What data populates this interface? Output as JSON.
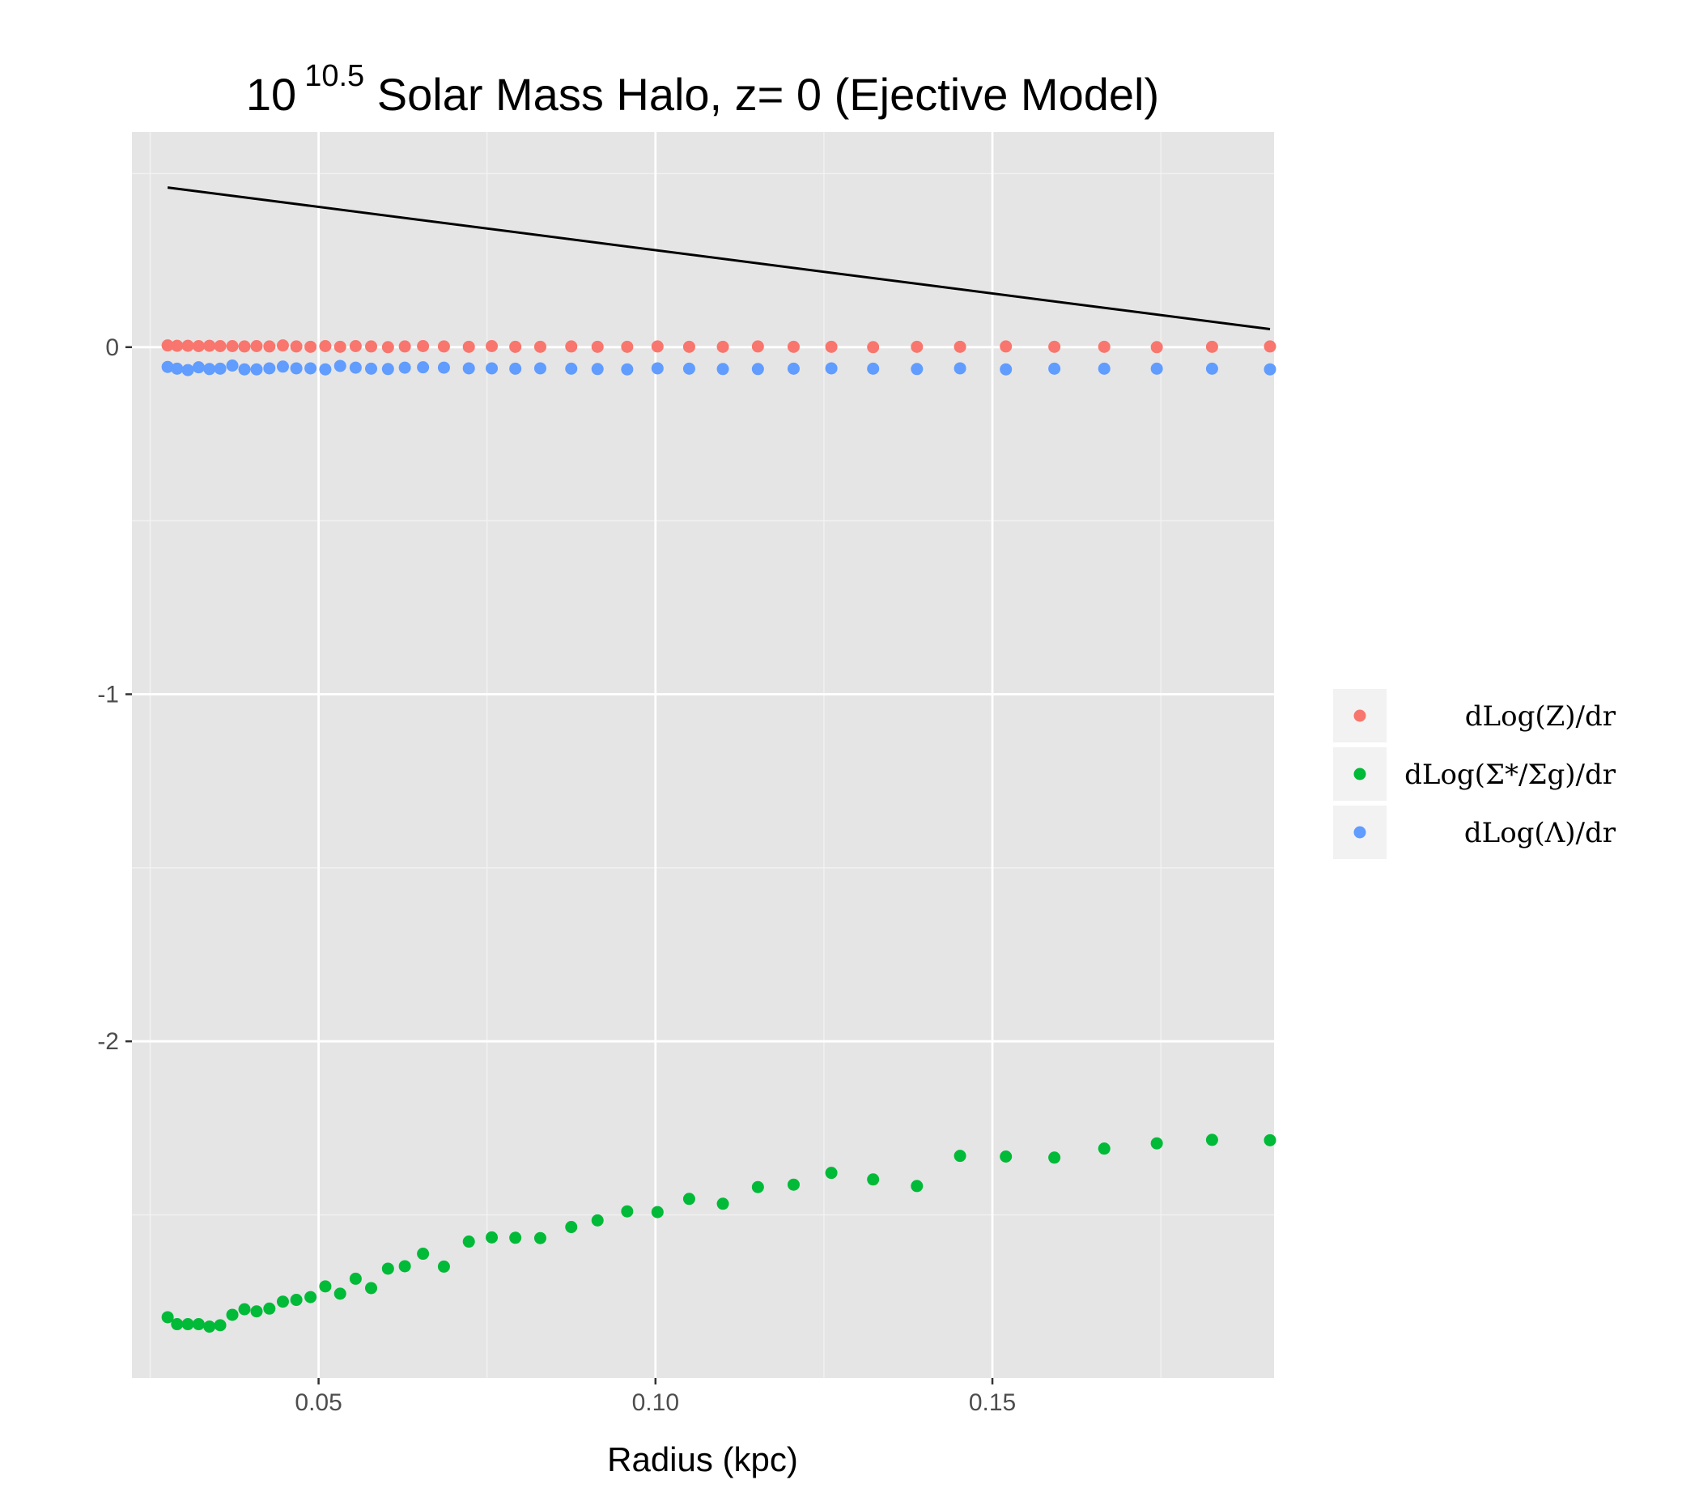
{
  "title": {
    "base": "10",
    "exponent": "10.5",
    "rest": " Solar Mass Halo, z= 0 (Ejective Model)"
  },
  "chart_data": {
    "type": "scatter",
    "xlabel": "Radius (kpc)",
    "ylabel": "",
    "xlim": [
      0.0223,
      0.1918
    ],
    "ylim": [
      -2.97,
      0.62
    ],
    "x_ticks": [
      {
        "value": 0.05,
        "label": "0.05"
      },
      {
        "value": 0.1,
        "label": "0.10"
      },
      {
        "value": 0.15,
        "label": "0.15"
      }
    ],
    "y_ticks": [
      {
        "value": 0,
        "label": "0"
      },
      {
        "value": -1,
        "label": "-1"
      },
      {
        "value": -2,
        "label": "-2"
      }
    ],
    "grid": true,
    "legend_position": "right",
    "x": [
      0.0276,
      0.029,
      0.0306,
      0.0322,
      0.0338,
      0.0354,
      0.0372,
      0.039,
      0.0408,
      0.0427,
      0.0447,
      0.0467,
      0.0488,
      0.051,
      0.0532,
      0.0555,
      0.0578,
      0.0603,
      0.0628,
      0.0655,
      0.0686,
      0.0723,
      0.0757,
      0.0792,
      0.0829,
      0.0875,
      0.0914,
      0.0958,
      0.1003,
      0.105,
      0.11,
      0.1152,
      0.1205,
      0.1261,
      0.1323,
      0.1388,
      0.1452,
      0.152,
      0.1592,
      0.1666,
      0.1744,
      0.1826,
      0.1912
    ],
    "series": [
      {
        "name": "dLog(Z)/dr",
        "color": "#f8766d",
        "values": [
          0.005,
          0.004,
          0.004,
          0.003,
          0.004,
          0.003,
          0.003,
          0.002,
          0.003,
          0.002,
          0.005,
          0.002,
          0.001,
          0.003,
          0.001,
          0.003,
          0.002,
          0.0,
          0.002,
          0.003,
          0.002,
          0.001,
          0.003,
          0.001,
          0.001,
          0.002,
          0.001,
          0.001,
          0.002,
          0.001,
          0.001,
          0.002,
          0.001,
          0.001,
          0.0,
          0.001,
          0.001,
          0.002,
          0.001,
          0.001,
          0.0,
          0.001,
          0.002
        ]
      },
      {
        "name": "dLog(Σ*/Σg)/dr",
        "color": "#00ba38",
        "values": [
          -2.795,
          -2.815,
          -2.815,
          -2.815,
          -2.822,
          -2.818,
          -2.788,
          -2.772,
          -2.778,
          -2.77,
          -2.75,
          -2.745,
          -2.737,
          -2.706,
          -2.727,
          -2.684,
          -2.711,
          -2.655,
          -2.648,
          -2.612,
          -2.649,
          -2.577,
          -2.565,
          -2.566,
          -2.567,
          -2.535,
          -2.516,
          -2.49,
          -2.492,
          -2.454,
          -2.468,
          -2.42,
          -2.413,
          -2.379,
          -2.398,
          -2.417,
          -2.33,
          -2.332,
          -2.335,
          -2.309,
          -2.294,
          -2.284,
          -2.285
        ]
      },
      {
        "name": "dLog(Λ)/dr",
        "color": "#619cff",
        "values": [
          -0.057,
          -0.062,
          -0.066,
          -0.058,
          -0.063,
          -0.062,
          -0.053,
          -0.064,
          -0.064,
          -0.061,
          -0.056,
          -0.061,
          -0.061,
          -0.064,
          -0.054,
          -0.059,
          -0.062,
          -0.063,
          -0.059,
          -0.058,
          -0.059,
          -0.061,
          -0.061,
          -0.062,
          -0.061,
          -0.062,
          -0.063,
          -0.064,
          -0.061,
          -0.062,
          -0.063,
          -0.063,
          -0.062,
          -0.061,
          -0.062,
          -0.063,
          -0.061,
          -0.064,
          -0.062,
          -0.062,
          -0.062,
          -0.062,
          -0.064
        ]
      }
    ],
    "line": {
      "color": "#000000",
      "x": [
        0.0276,
        0.1912
      ],
      "y": [
        0.46,
        0.052
      ]
    }
  }
}
